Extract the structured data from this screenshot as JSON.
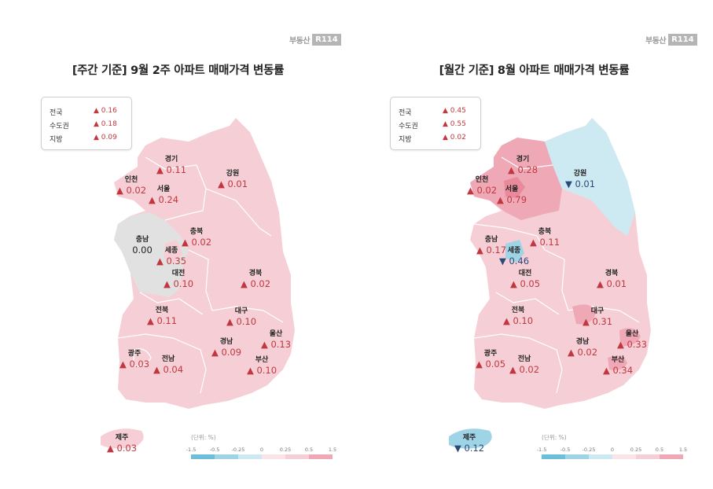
{
  "colors": {
    "up_text": "#c2373f",
    "down_text": "#2a4a7a",
    "neutral_region": "#e1e1e1",
    "light_pink": "#f6cfd6",
    "mid_pink": "#efa9b6",
    "light_blue": "#cde9f2",
    "mid_blue": "#9fd3e6"
  },
  "legend_scale": {
    "unit_label": "(단위: %)",
    "ticks": [
      "-1.5",
      "-0.5",
      "-0.25",
      "0",
      "0.25",
      "0.5",
      "1.5"
    ],
    "colors": [
      "#6bbfd9",
      "#9fd3e6",
      "#cde9f2",
      "#fbe3e7",
      "#f6cfd6",
      "#efa9b6"
    ]
  },
  "logo": {
    "text": "부동산",
    "box": "R114"
  },
  "chart_data": [
    {
      "type": "map",
      "title": "[주간 기준] 9월 2주 아파트 매매가격 변동률",
      "unit": "%",
      "summary": [
        {
          "label": "전국",
          "value": 0.16,
          "text": "▲ 0.16"
        },
        {
          "label": "수도권",
          "value": 0.18,
          "text": "▲ 0.18"
        },
        {
          "label": "지방",
          "value": 0.09,
          "text": "▲ 0.09"
        }
      ],
      "regions": [
        {
          "name": "경기",
          "value": 0.11,
          "text": "▲ 0.11",
          "dir": "up"
        },
        {
          "name": "인천",
          "value": 0.02,
          "text": "▲ 0.02",
          "dir": "up"
        },
        {
          "name": "서울",
          "value": 0.24,
          "text": "▲ 0.24",
          "dir": "up"
        },
        {
          "name": "강원",
          "value": 0.01,
          "text": "▲ 0.01",
          "dir": "up"
        },
        {
          "name": "충남",
          "value": 0.0,
          "text": "0.00",
          "dir": "flat"
        },
        {
          "name": "충북",
          "value": 0.02,
          "text": "▲ 0.02",
          "dir": "up"
        },
        {
          "name": "세종",
          "value": 0.35,
          "text": "▲ 0.35",
          "dir": "up"
        },
        {
          "name": "대전",
          "value": 0.1,
          "text": "▲ 0.10",
          "dir": "up"
        },
        {
          "name": "경북",
          "value": 0.02,
          "text": "▲ 0.02",
          "dir": "up"
        },
        {
          "name": "전북",
          "value": 0.11,
          "text": "▲ 0.11",
          "dir": "up"
        },
        {
          "name": "대구",
          "value": 0.1,
          "text": "▲ 0.10",
          "dir": "up"
        },
        {
          "name": "울산",
          "value": 0.13,
          "text": "▲ 0.13",
          "dir": "up"
        },
        {
          "name": "광주",
          "value": 0.03,
          "text": "▲ 0.03",
          "dir": "up"
        },
        {
          "name": "경남",
          "value": 0.09,
          "text": "▲ 0.09",
          "dir": "up"
        },
        {
          "name": "전남",
          "value": 0.04,
          "text": "▲ 0.04",
          "dir": "up"
        },
        {
          "name": "부산",
          "value": 0.1,
          "text": "▲ 0.10",
          "dir": "up"
        },
        {
          "name": "제주",
          "value": 0.03,
          "text": "▲ 0.03",
          "dir": "up"
        }
      ]
    },
    {
      "type": "map",
      "title": "[월간 기준] 8월 아파트 매매가격 변동률",
      "unit": "%",
      "summary": [
        {
          "label": "전국",
          "value": 0.45,
          "text": "▲ 0.45"
        },
        {
          "label": "수도권",
          "value": 0.55,
          "text": "▲ 0.55"
        },
        {
          "label": "지방",
          "value": 0.02,
          "text": "▲ 0.02"
        }
      ],
      "regions": [
        {
          "name": "경기",
          "value": 0.28,
          "text": "▲ 0.28",
          "dir": "up"
        },
        {
          "name": "인천",
          "value": 0.02,
          "text": "▲ 0.02",
          "dir": "up"
        },
        {
          "name": "서울",
          "value": 0.79,
          "text": "▲ 0.79",
          "dir": "up"
        },
        {
          "name": "강원",
          "value": -0.01,
          "text": "▼ 0.01",
          "dir": "down"
        },
        {
          "name": "충남",
          "value": 0.17,
          "text": "▲ 0.17",
          "dir": "up"
        },
        {
          "name": "충북",
          "value": 0.11,
          "text": "▲ 0.11",
          "dir": "up"
        },
        {
          "name": "세종",
          "value": -0.46,
          "text": "▼ 0.46",
          "dir": "down"
        },
        {
          "name": "대전",
          "value": 0.05,
          "text": "▲ 0.05",
          "dir": "up"
        },
        {
          "name": "경북",
          "value": 0.01,
          "text": "▲ 0.01",
          "dir": "up"
        },
        {
          "name": "전북",
          "value": 0.1,
          "text": "▲ 0.10",
          "dir": "up"
        },
        {
          "name": "대구",
          "value": 0.31,
          "text": "▲ 0.31",
          "dir": "up"
        },
        {
          "name": "울산",
          "value": 0.33,
          "text": "▲ 0.33",
          "dir": "up"
        },
        {
          "name": "광주",
          "value": 0.05,
          "text": "▲ 0.05",
          "dir": "up"
        },
        {
          "name": "경남",
          "value": 0.02,
          "text": "▲ 0.02",
          "dir": "up"
        },
        {
          "name": "전남",
          "value": 0.02,
          "text": "▲ 0.02",
          "dir": "up"
        },
        {
          "name": "부산",
          "value": 0.34,
          "text": "▲ 0.34",
          "dir": "up"
        },
        {
          "name": "제주",
          "value": -0.12,
          "text": "▼ 0.12",
          "dir": "down"
        }
      ]
    }
  ]
}
